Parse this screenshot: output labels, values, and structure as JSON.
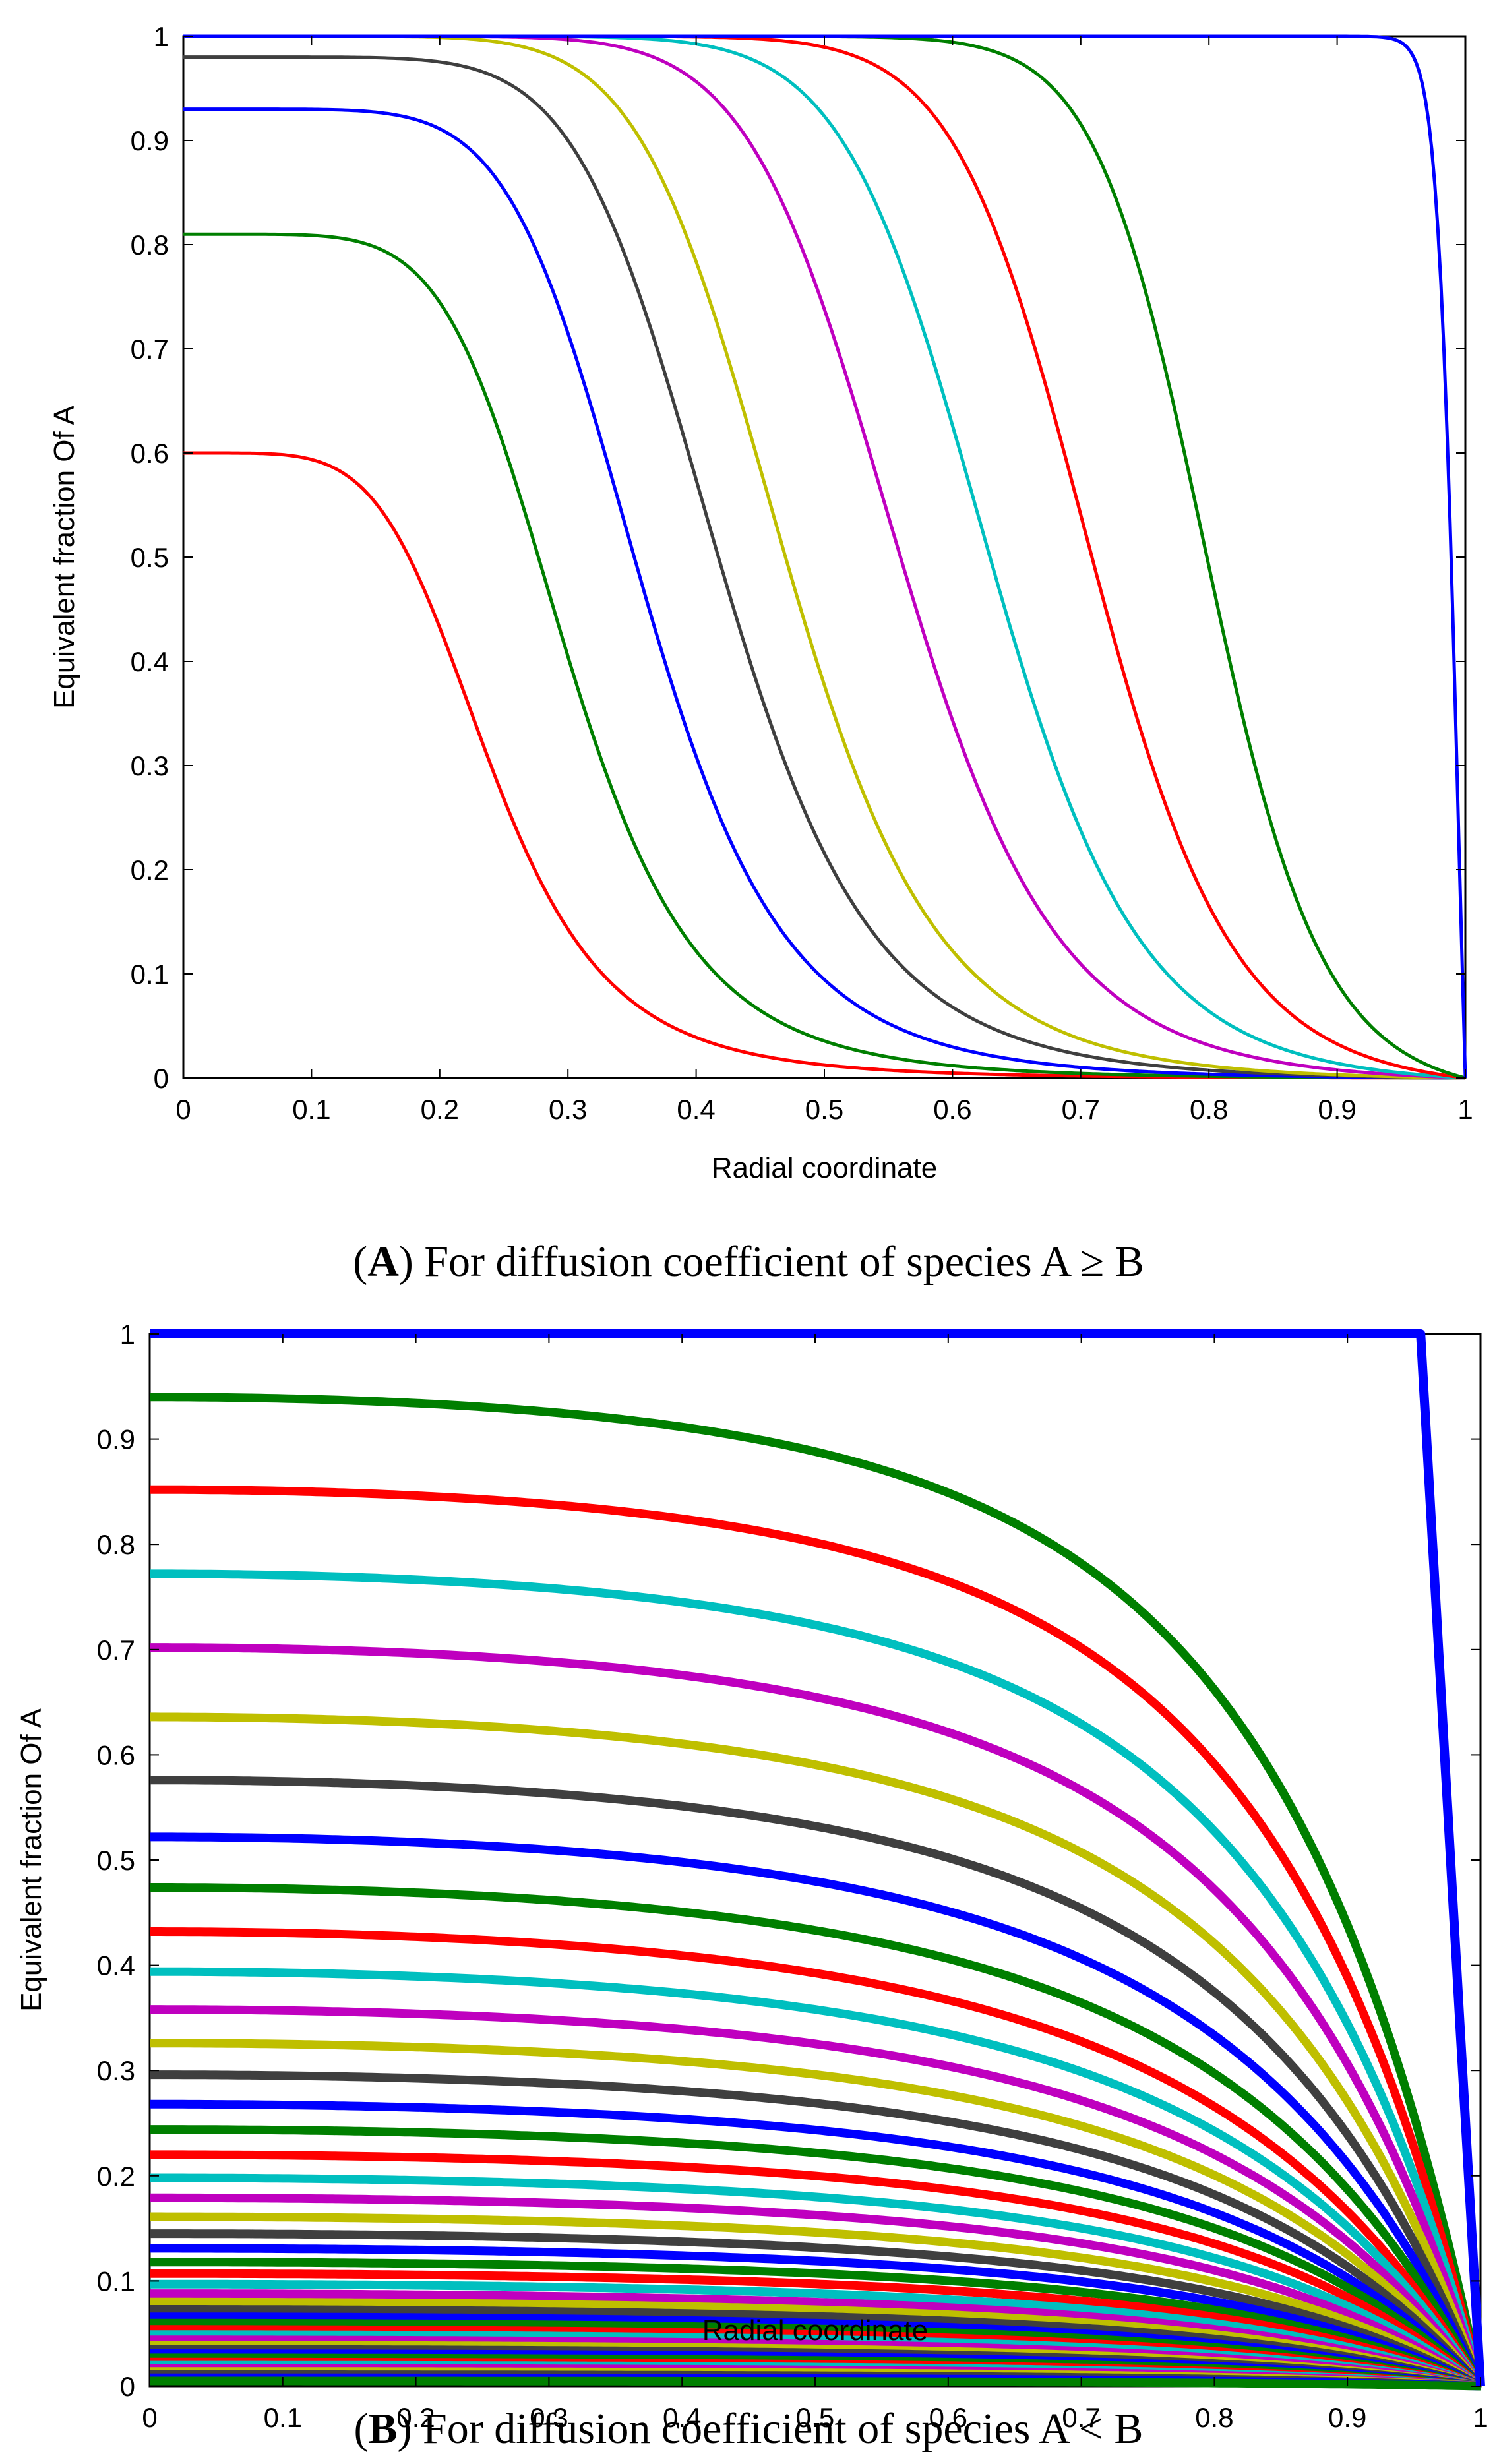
{
  "chart_data": [
    {
      "type": "line",
      "panel": "A",
      "xlabel": "Radial coordinate",
      "ylabel": "Equivalent fraction Of A",
      "xlim": [
        0,
        1
      ],
      "ylim": [
        0,
        1
      ],
      "xticks": [
        "0",
        "0.1",
        "0.2",
        "0.3",
        "0.4",
        "0.5",
        "0.6",
        "0.7",
        "0.8",
        "0.9",
        "1"
      ],
      "yticks": [
        "0",
        "0.1",
        "0.2",
        "0.3",
        "0.4",
        "0.5",
        "0.6",
        "0.7",
        "0.8",
        "0.9",
        "1"
      ],
      "caption": {
        "open": "(",
        "letter": "A",
        "text": ") For diffusion coefficient of species A ≥ B"
      },
      "series": [
        {
          "name": "curve-1",
          "color": "#ff0000",
          "center": 0.6,
          "half": 0.24,
          "steep": 2.6
        },
        {
          "name": "curve-2",
          "color": "#007f00",
          "center": 0.81,
          "half": 0.3,
          "steep": 3.0
        },
        {
          "name": "curve-3",
          "color": "#0000ff",
          "center": 0.93,
          "half": 0.36,
          "steep": 3.3
        },
        {
          "name": "curve-4",
          "color": "#3f3f3f",
          "center": 0.98,
          "half": 0.42,
          "steep": 3.6
        },
        {
          "name": "curve-5",
          "color": "#bfbf00",
          "center": 1.0,
          "half": 0.47,
          "steep": 4.0
        },
        {
          "name": "curve-6",
          "color": "#bf00bf",
          "center": 1.0,
          "half": 0.56,
          "steep": 4.6
        },
        {
          "name": "curve-7",
          "color": "#00bfbf",
          "center": 1.0,
          "half": 0.63,
          "steep": 5.4
        },
        {
          "name": "curve-8",
          "color": "#ff0000",
          "center": 1.0,
          "half": 0.71,
          "steep": 6.5
        },
        {
          "name": "curve-9",
          "color": "#007f00",
          "center": 1.0,
          "half": 0.8,
          "steep": 9.0
        },
        {
          "name": "curve-10",
          "color": "#0000ff",
          "center": 1.0,
          "half": 0.995,
          "steep": 60
        }
      ]
    },
    {
      "type": "line",
      "panel": "B",
      "xlabel": "Radial coordinate",
      "ylabel": "Equivalent fraction Of A",
      "xlim": [
        0,
        1
      ],
      "ylim": [
        0,
        1
      ],
      "xticks": [
        "0",
        "0.1",
        "0.2",
        "0.3",
        "0.4",
        "0.5",
        "0.6",
        "0.7",
        "0.8",
        "0.9",
        "1"
      ],
      "yticks": [
        "0",
        "0.1",
        "0.2",
        "0.3",
        "0.4",
        "0.5",
        "0.6",
        "0.7",
        "0.8",
        "0.9",
        "1"
      ],
      "caption": {
        "open": "(",
        "letter": "B",
        "text": ") For diffusion coefficient of species A < B"
      },
      "color_cycle": [
        "#007f00",
        "#ff0000",
        "#00bfbf",
        "#bf00bf",
        "#bfbf00",
        "#3f3f3f",
        "#0000ff"
      ],
      "wall_curve": {
        "name": "curve-wall",
        "color": "#0000ff",
        "center": 1.0
      },
      "center_values": [
        0.94,
        0.852,
        0.772,
        0.702,
        0.636,
        0.576,
        0.522,
        0.474,
        0.432,
        0.394,
        0.358,
        0.326,
        0.296,
        0.268,
        0.244,
        0.22,
        0.198,
        0.179,
        0.161,
        0.145,
        0.131,
        0.118,
        0.107,
        0.097,
        0.088,
        0.08,
        0.073,
        0.066,
        0.06,
        0.054,
        0.049,
        0.044,
        0.039,
        0.035,
        0.031,
        0.027,
        0.023,
        0.02,
        0.017,
        0.014,
        0.011,
        0.008,
        0.005
      ]
    }
  ]
}
